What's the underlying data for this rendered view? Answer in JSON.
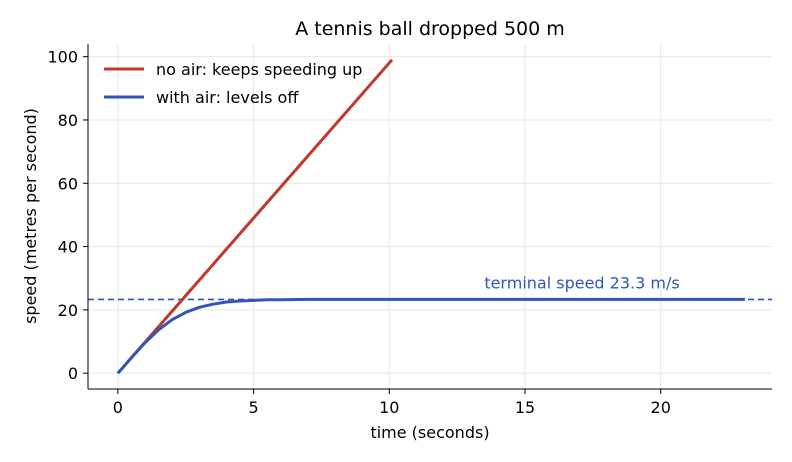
{
  "chart_data": {
    "type": "line",
    "title": "A tennis ball dropped 500 m",
    "xlabel": "time (seconds)",
    "ylabel": "speed (metres per second)",
    "xlim": [
      -1.1,
      24.1
    ],
    "ylim": [
      -5,
      104
    ],
    "xticks": [
      0,
      5,
      10,
      15,
      20
    ],
    "yticks": [
      0,
      20,
      40,
      60,
      80,
      100
    ],
    "grid": true,
    "legend_position": "top-left",
    "series": [
      {
        "name": "no air: keeps speeding up",
        "color": "#c0392b",
        "x": [
          0,
          10.1
        ],
        "y": [
          0,
          99.0
        ]
      },
      {
        "name": "with air: levels off",
        "color": "#3355bb",
        "x": [
          0,
          0.5,
          1,
          1.5,
          2,
          2.5,
          3,
          3.5,
          4,
          4.5,
          5,
          5.5,
          6,
          7,
          8,
          9,
          10,
          12,
          14,
          16,
          18,
          20,
          23.1
        ],
        "y": [
          0,
          4.9,
          9.6,
          13.7,
          16.9,
          19.2,
          20.8,
          21.8,
          22.5,
          22.8,
          23.0,
          23.2,
          23.2,
          23.3,
          23.3,
          23.3,
          23.3,
          23.3,
          23.3,
          23.3,
          23.3,
          23.3,
          23.3
        ]
      }
    ],
    "reference_lines": [
      {
        "y": 23.3,
        "style": "dashed",
        "color": "#3355bb",
        "label": "terminal speed 23.3 m/s",
        "label_x": 17.1
      }
    ]
  }
}
